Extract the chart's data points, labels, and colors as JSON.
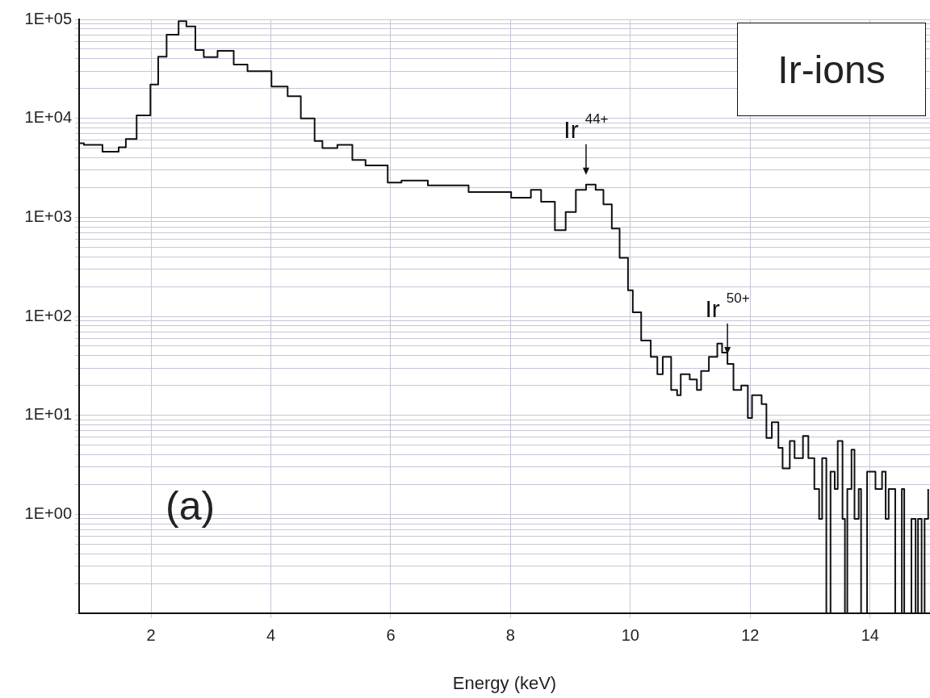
{
  "chart_data": {
    "type": "step",
    "xlabel": "Energy (keV)",
    "xlim": [
      0.8,
      15
    ],
    "xticks": [
      2,
      4,
      6,
      8,
      10,
      12,
      14
    ],
    "ylim": [
      0.1,
      100000
    ],
    "log": true,
    "grid": true,
    "legend": false,
    "marker": "none",
    "line_style": "solid",
    "yticks": [
      {
        "value": 0.1,
        "label": null
      },
      {
        "value": 0.2,
        "label": null
      },
      {
        "value": 0.3,
        "label": null
      },
      {
        "value": 0.4,
        "label": null
      },
      {
        "value": 0.5,
        "label": null
      },
      {
        "value": 0.6,
        "label": null
      },
      {
        "value": 0.7,
        "label": null
      },
      {
        "value": 0.8,
        "label": null
      },
      {
        "value": 0.9,
        "label": null
      },
      {
        "value": 1,
        "label": "1E+00"
      },
      {
        "value": 2,
        "label": null
      },
      {
        "value": 3,
        "label": null
      },
      {
        "value": 4,
        "label": null
      },
      {
        "value": 5,
        "label": null
      },
      {
        "value": 6,
        "label": null
      },
      {
        "value": 7,
        "label": null
      },
      {
        "value": 8,
        "label": null
      },
      {
        "value": 9,
        "label": null
      },
      {
        "value": 10,
        "label": "1E+01"
      },
      {
        "value": 20,
        "label": null
      },
      {
        "value": 30,
        "label": null
      },
      {
        "value": 40,
        "label": null
      },
      {
        "value": 50,
        "label": null
      },
      {
        "value": 60,
        "label": null
      },
      {
        "value": 70,
        "label": null
      },
      {
        "value": 80,
        "label": null
      },
      {
        "value": 90,
        "label": null
      },
      {
        "value": 100,
        "label": "1E+02"
      },
      {
        "value": 200,
        "label": null
      },
      {
        "value": 300,
        "label": null
      },
      {
        "value": 400,
        "label": null
      },
      {
        "value": 500,
        "label": null
      },
      {
        "value": 600,
        "label": null
      },
      {
        "value": 700,
        "label": null
      },
      {
        "value": 800,
        "label": null
      },
      {
        "value": 900,
        "label": null
      },
      {
        "value": 1000,
        "label": "1E+03"
      },
      {
        "value": 2000,
        "label": null
      },
      {
        "value": 3000,
        "label": null
      },
      {
        "value": 4000,
        "label": null
      },
      {
        "value": 5000,
        "label": null
      },
      {
        "value": 6000,
        "label": null
      },
      {
        "value": 7000,
        "label": null
      },
      {
        "value": 8000,
        "label": null
      },
      {
        "value": 9000,
        "label": null
      },
      {
        "value": 10000,
        "label": "1E+04"
      },
      {
        "value": 20000,
        "label": null
      },
      {
        "value": 30000,
        "label": null
      },
      {
        "value": 40000,
        "label": null
      },
      {
        "value": 50000,
        "label": null
      },
      {
        "value": 60000,
        "label": null
      },
      {
        "value": 70000,
        "label": null
      },
      {
        "value": 80000,
        "label": null
      },
      {
        "value": 90000,
        "label": null
      },
      {
        "value": 100000,
        "label": "1E+05"
      }
    ],
    "series": [
      {
        "color": "#111111",
        "x": [
          0.8,
          0.88,
          1.19,
          1.46,
          1.58,
          1.76,
          1.99,
          2.12,
          2.26,
          2.46,
          2.59,
          2.74,
          2.88,
          3.11,
          3.38,
          3.61,
          4.01,
          4.28,
          4.5,
          4.73,
          4.86,
          5.11,
          5.36,
          5.58,
          5.95,
          6.18,
          6.62,
          7.3,
          8.01,
          8.34,
          8.51,
          8.74,
          8.92,
          9.09,
          9.26,
          9.42,
          9.55,
          9.69,
          9.82,
          9.96,
          10.04,
          10.18,
          10.34,
          10.45,
          10.54,
          10.68,
          10.78,
          10.84,
          10.99,
          11.11,
          11.18,
          11.31,
          11.45,
          11.53,
          11.62,
          11.72,
          11.85,
          11.96,
          12.03,
          12.19,
          12.27,
          12.36,
          12.47,
          12.54,
          12.66,
          12.74,
          12.88,
          12.97,
          13.07,
          13.15,
          13.2,
          13.27,
          13.34,
          13.41,
          13.46,
          13.54,
          13.58,
          13.62,
          13.69,
          13.74,
          13.81,
          13.85,
          13.95,
          14.09,
          14.2,
          14.26,
          14.31,
          14.42,
          14.53,
          14.57,
          14.69,
          14.76,
          14.8,
          14.86,
          14.91,
          14.97
        ],
        "values": [
          5600,
          5400,
          4600,
          5100,
          6200,
          10700,
          22000,
          42000,
          70000,
          96000,
          85000,
          49000,
          41500,
          48000,
          35000,
          30000,
          21000,
          16700,
          10000,
          5900,
          5000,
          5400,
          3800,
          3350,
          2250,
          2350,
          2100,
          1800,
          1580,
          1900,
          1440,
          740,
          1130,
          1900,
          2140,
          1900,
          1350,
          770,
          390,
          183,
          110,
          57,
          39,
          26,
          39,
          18,
          16,
          26,
          23,
          18,
          28,
          39,
          53,
          43,
          33,
          18,
          20,
          9.4,
          16,
          13,
          5.9,
          8.5,
          4.7,
          2.9,
          5.5,
          3.7,
          6.2,
          3.7,
          1.8,
          0.9,
          3.7,
          0.1,
          2.7,
          1.8,
          5.5,
          0.9,
          0.1,
          1.8,
          4.5,
          0.9,
          1.8,
          0.1,
          2.7,
          1.8,
          2.7,
          0.9,
          1.8,
          0.1,
          1.8,
          0.1,
          0.9,
          0.1,
          0.9,
          0.1,
          0.9,
          1.8
        ]
      }
    ],
    "annotations": [
      "Ir-ions",
      "(a)",
      {
        "text": "Ir $^{44+}$",
        "x": 9.26,
        "y": 2140
      },
      {
        "text": "Ir $^{50+}$",
        "x": 11.62,
        "y": 33
      }
    ]
  }
}
